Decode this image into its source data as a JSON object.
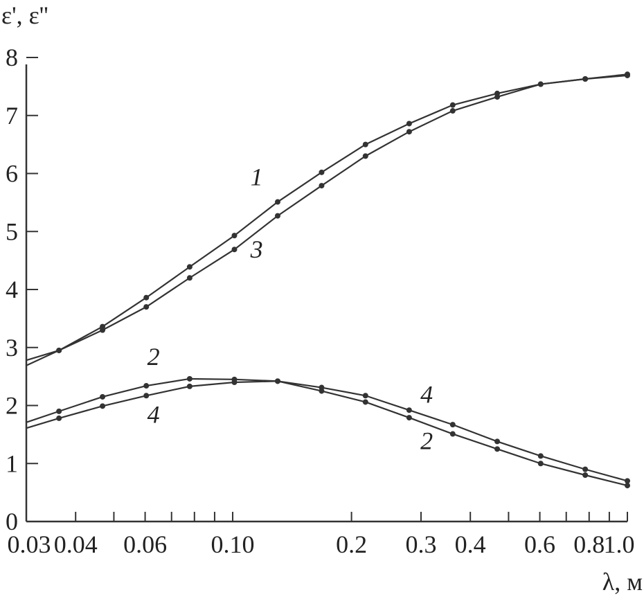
{
  "chart_data": {
    "type": "line",
    "title": "",
    "xlabel": "λ, м",
    "ylabel": "ε', ε''",
    "xscale": "log",
    "xlim": [
      0.03,
      1.0
    ],
    "ylim": [
      0,
      8
    ],
    "grid": false,
    "legend": "none",
    "x_tick_labels": [
      {
        "value": 0.03,
        "label": "0.03"
      },
      {
        "value": 0.04,
        "label": "0.04"
      },
      {
        "value": 0.06,
        "label": "0.06"
      },
      {
        "value": 0.1,
        "label": "0.10"
      },
      {
        "value": 0.2,
        "label": "0.2"
      },
      {
        "value": 0.3,
        "label": "0.3"
      },
      {
        "value": 0.4,
        "label": "0.4"
      },
      {
        "value": 0.6,
        "label": "0.6"
      },
      {
        "value": 0.8,
        "label": "0.8"
      },
      {
        "value": 1.0,
        "label": "1.0"
      }
    ],
    "y_ticks": [
      0,
      1,
      2,
      3,
      4,
      5,
      6,
      7,
      8
    ],
    "line_color": "#333333",
    "x": [
      0.03,
      0.0363,
      0.0468,
      0.0604,
      0.0778,
      0.101,
      0.13,
      0.168,
      0.217,
      0.28,
      0.361,
      0.468,
      0.603,
      0.782,
      1.0
    ],
    "series": [
      {
        "name": "1",
        "values": [
          2.69,
          2.95,
          3.36,
          3.86,
          4.39,
          4.93,
          5.51,
          6.02,
          6.5,
          6.86,
          7.18,
          7.38,
          7.54,
          7.63,
          7.71
        ]
      },
      {
        "name": "3",
        "values": [
          2.78,
          2.95,
          3.3,
          3.7,
          4.2,
          4.69,
          5.27,
          5.79,
          6.3,
          6.72,
          7.08,
          7.32,
          7.54,
          7.63,
          7.69
        ]
      },
      {
        "name": "2",
        "values": [
          1.71,
          1.9,
          2.15,
          2.34,
          2.46,
          2.45,
          2.42,
          2.25,
          2.06,
          1.79,
          1.51,
          1.25,
          1.0,
          0.8,
          0.62
        ]
      },
      {
        "name": "4",
        "values": [
          1.61,
          1.78,
          1.99,
          2.17,
          2.33,
          2.4,
          2.42,
          2.31,
          2.17,
          1.92,
          1.67,
          1.38,
          1.13,
          0.9,
          0.7
        ]
      }
    ],
    "annotations": [
      {
        "text": "1",
        "x": 0.115,
        "y": 5.8
      },
      {
        "text": "3",
        "x": 0.115,
        "y": 4.55
      },
      {
        "text": "2",
        "x": 0.063,
        "y": 2.7
      },
      {
        "text": "4",
        "x": 0.063,
        "y": 1.7
      },
      {
        "text": "4",
        "x": 0.31,
        "y": 2.05
      },
      {
        "text": "2",
        "x": 0.31,
        "y": 1.25
      }
    ]
  }
}
